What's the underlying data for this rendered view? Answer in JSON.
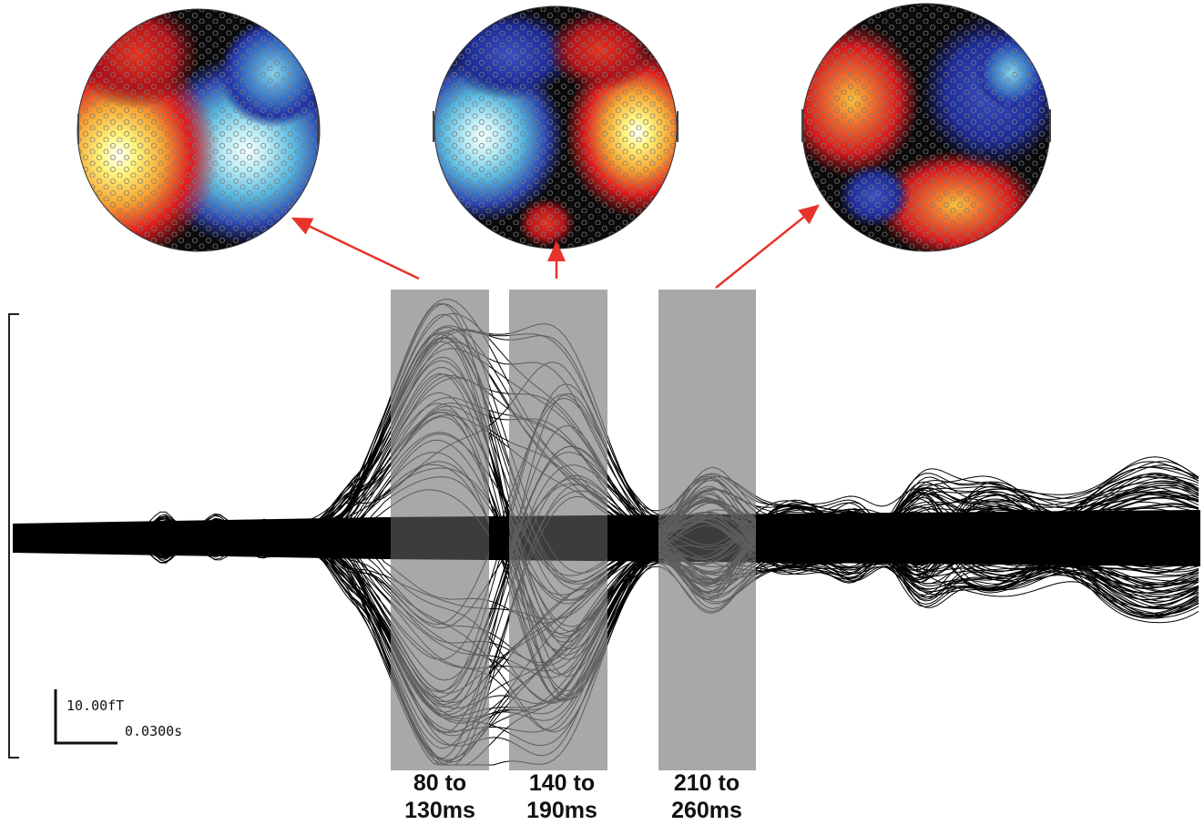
{
  "windows": [
    {
      "label_line1": "80 to",
      "label_line2": "130ms",
      "start_ms": 80,
      "end_ms": 130
    },
    {
      "label_line1": "140 to",
      "label_line2": "190ms",
      "start_ms": 140,
      "end_ms": 190
    },
    {
      "label_line1": "210 to",
      "label_line2": "260ms",
      "start_ms": 210,
      "end_ms": 260
    }
  ],
  "scale_bar": {
    "amplitude_label": "10.00fT",
    "time_label": "0.0300s"
  },
  "topomaps": [
    {
      "window": "80 to 130ms",
      "pattern": "left-positive-right-negative"
    },
    {
      "window": "140 to 190ms",
      "pattern": "left-negative-right-positive"
    },
    {
      "window": "210 to 260ms",
      "pattern": "quadrupolar"
    }
  ],
  "colors": {
    "positive_peak": "#fff27a",
    "positive": "#e31a1c",
    "zero": "#050505",
    "negative": "#2233a8",
    "negative_peak": "#c8f1f8",
    "window_shade": "#a8a8a8",
    "arrow": "#e8332a",
    "traces": "#000000"
  }
}
